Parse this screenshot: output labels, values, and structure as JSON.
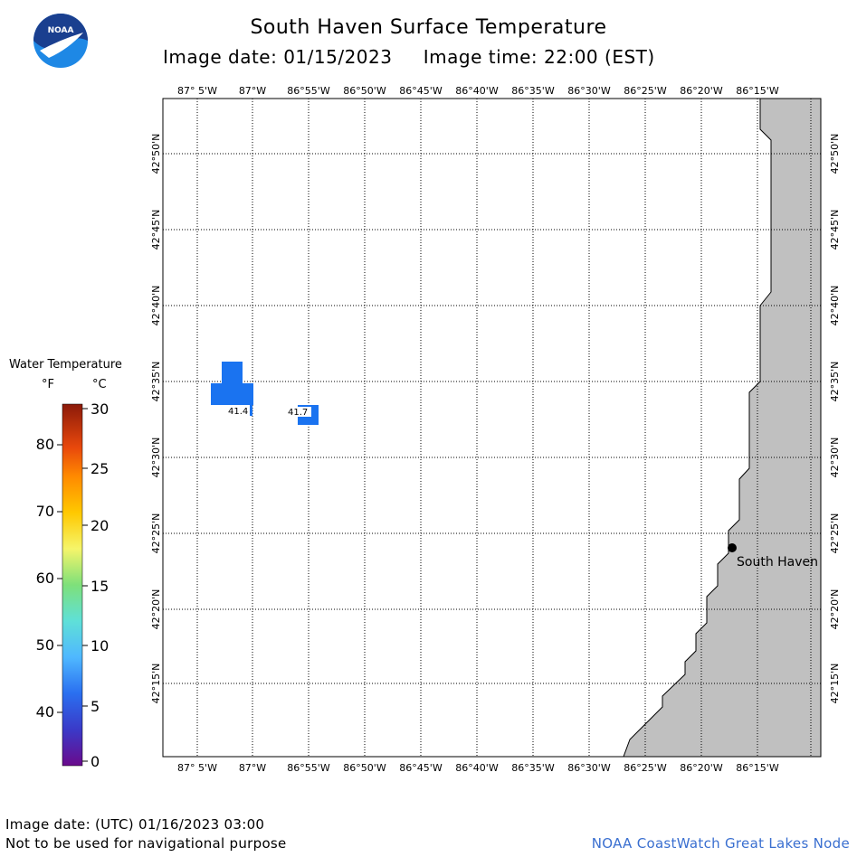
{
  "header": {
    "title": "South Haven Surface Temperature",
    "date_line": "Image date: 01/15/2023     Image time: 22:00 (EST)"
  },
  "logo": {
    "text": "NOAA",
    "colors": {
      "top": "#1a3f8f",
      "bottom": "#1e88e5"
    }
  },
  "map": {
    "lon_labels": [
      "87° 5'W",
      "87°W",
      "86°55'W",
      "86°50'W",
      "86°45'W",
      "86°40'W",
      "86°35'W",
      "86°30'W",
      "86°25'W",
      "86°20'W",
      "86°15'W"
    ],
    "lat_labels": [
      "42°50'N",
      "42°45'N",
      "42°40'N",
      "42°35'N",
      "42°30'N",
      "42°25'N",
      "42°20'N",
      "42°15'N"
    ],
    "land_color": "#c0c0c0",
    "water_color": "#ffffff",
    "patch_color": "#1a73f0",
    "temperature_labels": [
      "41.4",
      "41.7"
    ],
    "city": {
      "name": "South Haven"
    }
  },
  "legend": {
    "title": "Water Temperature",
    "unit_f": "°F",
    "unit_c": "°C",
    "f_ticks": [
      "80",
      "70",
      "60",
      "50",
      "40"
    ],
    "c_ticks": [
      "30",
      "25",
      "20",
      "15",
      "10",
      "5",
      "0"
    ]
  },
  "footer": {
    "utc_date": "Image date: (UTC) 01/16/2023  03:00",
    "disclaimer": "Not to be used for navigational purpose",
    "credit": "NOAA CoastWatch Great Lakes Node"
  }
}
